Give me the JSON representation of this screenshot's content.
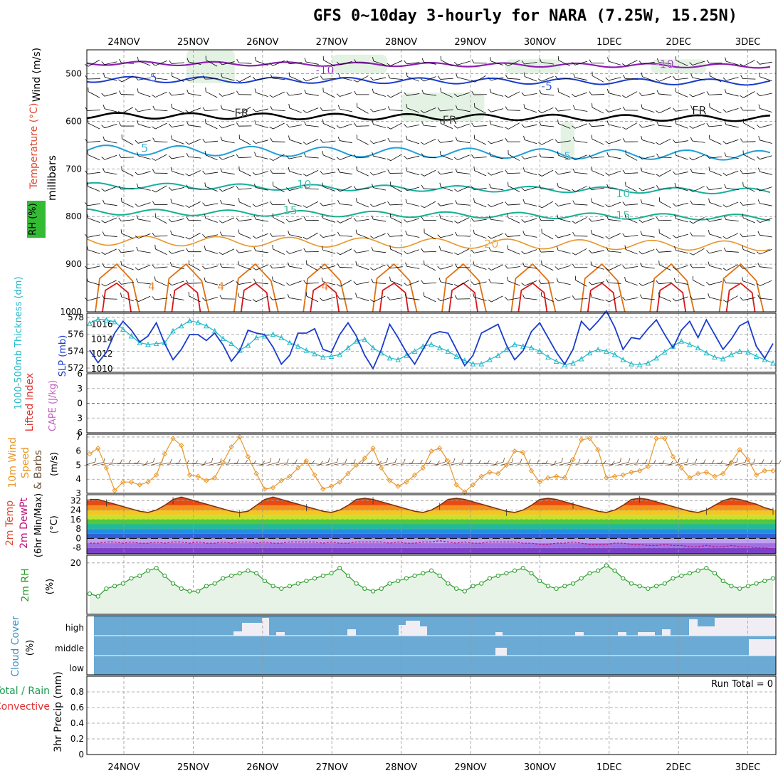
{
  "title": "GFS 0~10day 3-hourly for NARA (7.25W, 15.25N)",
  "dates": [
    "24NOV",
    "25NOV",
    "26NOV",
    "27NOV",
    "28NOV",
    "29NOV",
    "30NOV",
    "1DEC",
    "2DEC",
    "3DEC"
  ],
  "chart_data": [
    {
      "type": "line",
      "panel": "upper-air",
      "ylabel_parts": [
        "RH (%)",
        "Temperature (°C)",
        "Wind (m/s)"
      ],
      "yaxis_label": "millibars",
      "yticks": [
        500,
        600,
        700,
        800,
        900,
        1000
      ],
      "ylim": [
        1000,
        450
      ],
      "contour_labels": [
        {
          "text": "-10",
          "level": -10,
          "day": 2.9,
          "p": 493
        },
        {
          "text": "-10",
          "level": -10,
          "day": 7.8,
          "p": 481
        },
        {
          "text": "-5",
          "level": -5,
          "day": 0.4,
          "p": 509
        },
        {
          "text": "-5",
          "level": -5,
          "day": 6.1,
          "p": 527
        },
        {
          "text": "FR",
          "level": 0,
          "day": 1.7,
          "p": 583
        },
        {
          "text": "FR",
          "level": 0,
          "day": 4.7,
          "p": 598
        },
        {
          "text": "FR",
          "level": 0,
          "day": 8.3,
          "p": 578
        },
        {
          "text": "5",
          "level": 5,
          "day": 0.3,
          "p": 657
        },
        {
          "text": "5",
          "level": 5,
          "day": 6.4,
          "p": 674
        },
        {
          "text": "10",
          "level": 10,
          "day": 2.6,
          "p": 733
        },
        {
          "text": "10",
          "level": 10,
          "day": 7.2,
          "p": 752
        },
        {
          "text": "15",
          "level": 15,
          "day": 2.4,
          "p": 788
        },
        {
          "text": "15",
          "level": 15,
          "day": 7.2,
          "p": 798
        },
        {
          "text": "20",
          "level": 20,
          "day": 5.3,
          "p": 858
        },
        {
          "text": "4",
          "level": 4,
          "day": 0.4,
          "p": 948
        },
        {
          "text": "4",
          "level": 4,
          "day": 1.4,
          "p": 948
        },
        {
          "text": "4",
          "level": 4,
          "day": 2.9,
          "p": 948
        }
      ]
    },
    {
      "type": "line",
      "panel": "thickness-slp",
      "ylabel_left": "1000-500mb Thickness (dm)",
      "ylabel_right": "SLP (mb)",
      "yticks_left": [
        572,
        574,
        576,
        578
      ],
      "yticks_right": [
        1010,
        1012,
        1014,
        1016
      ],
      "series": [
        {
          "name": "SLP (mb)",
          "color": "#1a3ccc",
          "values": [
            1012.5,
            1010.8,
            1012.2,
            1014.8,
            1016.4,
            1015.2,
            1013.6,
            1014.4,
            1016.2,
            1013.4,
            1011.2,
            1012.6,
            1014.6,
            1014.6,
            1013.8,
            1014.8,
            1013.2,
            1011.0,
            1012.4,
            1015.2,
            1014.8,
            1014.6,
            1012.9,
            1010.6,
            1011.8,
            1014.8,
            1014.8,
            1015.4,
            1012.6,
            1012.2,
            1014.6,
            1016.2,
            1014.4,
            1011.8,
            1010.0,
            1012.6,
            1016.0,
            1014.2,
            1012.2,
            1010.6,
            1012.6,
            1014.6,
            1015.0,
            1014.8,
            1012.6,
            1010.4,
            1011.8,
            1014.8,
            1015.4,
            1016.0,
            1013.2,
            1011.2,
            1012.4,
            1015.0,
            1016.2,
            1014.2,
            1012.2,
            1010.6,
            1012.6,
            1016.4,
            1015.2,
            1016.4,
            1017.8,
            1015.6,
            1012.6,
            1014.2,
            1014.0,
            1015.4,
            1016.6,
            1014.6,
            1012.8,
            1015.2,
            1016.4,
            1014.2,
            1016.6,
            1014.6,
            1012.6,
            1014.0,
            1015.8,
            1016.4,
            1013.0,
            1011.4,
            1013.4
          ]
        },
        {
          "name": "1000-500mb Thickness (dm)",
          "color": "#20b8c8",
          "values": [
            577.3,
            577.8,
            577.7,
            577.5,
            576.6,
            575.8,
            575.0,
            574.8,
            574.9,
            575.0,
            576.4,
            577.0,
            577.6,
            577.4,
            577.0,
            576.4,
            575.5,
            574.9,
            574.1,
            574.7,
            575.6,
            575.8,
            576.0,
            575.6,
            575.0,
            574.6,
            574.1,
            573.7,
            573.3,
            573.4,
            573.6,
            574.4,
            575.2,
            575.4,
            574.4,
            573.8,
            573.2,
            573.0,
            573.5,
            574.0,
            574.6,
            574.8,
            574.4,
            574.0,
            573.4,
            572.9,
            572.5,
            572.5,
            573.0,
            573.5,
            574.2,
            574.8,
            574.6,
            574.4,
            574.0,
            573.3,
            572.8,
            572.4,
            572.6,
            573.1,
            573.8,
            574.2,
            574.0,
            573.6,
            573.0,
            572.5,
            572.4,
            572.6,
            573.2,
            573.9,
            574.6,
            575.2,
            574.8,
            574.4,
            573.8,
            573.3,
            573.1,
            573.6,
            574.0,
            573.9,
            573.4,
            573.0,
            572.6
          ]
        }
      ]
    },
    {
      "type": "line",
      "panel": "lifted-index-cape",
      "ylabel_left": "Lifted Index",
      "ylabel_right": "CAPE (J/kg)",
      "yticks": [
        -6,
        -3,
        0,
        3,
        6
      ],
      "reference_value": 0
    },
    {
      "type": "line",
      "panel": "10m-wind",
      "ylabel": "10m Wind Speed & Barbs",
      "unit": "(m/s)",
      "yticks": [
        3,
        4,
        5,
        6,
        7
      ],
      "series": [
        {
          "name": "10m Wind Speed",
          "color": "#e8962a",
          "values": [
            5.8,
            6.2,
            4.8,
            3.2,
            3.8,
            3.8,
            3.6,
            3.8,
            4.3,
            5.8,
            6.9,
            6.4,
            4.3,
            4.2,
            3.9,
            4.1,
            5.2,
            6.3,
            7.0,
            5.6,
            4.4,
            3.3,
            3.4,
            3.9,
            4.2,
            4.8,
            5.3,
            4.3,
            3.3,
            3.5,
            3.8,
            4.4,
            5.0,
            5.5,
            6.2,
            4.8,
            3.9,
            3.5,
            3.8,
            4.3,
            4.8,
            6.0,
            6.2,
            5.3,
            3.6,
            3.1,
            3.6,
            4.2,
            4.5,
            4.4,
            5.0,
            6.0,
            5.9,
            4.6,
            3.8,
            4.1,
            4.2,
            4.1,
            5.4,
            6.8,
            6.9,
            6.1,
            4.1,
            4.2,
            4.3,
            4.5,
            4.6,
            4.9,
            6.9,
            6.9,
            5.6,
            4.8,
            4.1,
            4.4,
            4.5,
            4.2,
            4.4,
            5.2,
            6.1,
            5.4,
            4.3,
            4.6,
            4.6
          ]
        }
      ]
    },
    {
      "type": "area",
      "panel": "2m-temp",
      "ylabel": "2m Temp 2m DewPt (6hr Min/Max)",
      "unit": "(°C)",
      "yticks": [
        -8,
        0,
        8,
        16,
        24,
        32
      ],
      "series": [
        {
          "name": "2m Temp",
          "color": "#7a3010",
          "values": [
            33,
            33,
            31,
            29,
            27,
            25,
            23,
            22,
            24,
            28,
            33,
            35,
            33,
            31,
            29,
            27,
            25,
            23,
            22,
            23,
            28,
            33,
            35,
            33,
            31,
            29,
            27,
            25,
            23,
            22,
            24,
            28,
            33,
            34,
            33,
            31,
            29,
            27,
            25,
            23,
            22,
            24,
            28,
            33,
            34,
            33,
            31,
            29,
            27,
            25,
            23,
            22,
            24,
            28,
            33,
            34,
            33,
            31,
            29,
            27,
            25,
            23,
            22,
            24,
            28,
            33,
            34,
            33,
            31,
            29,
            27,
            25,
            23,
            22,
            24,
            28,
            32,
            34,
            33,
            31,
            29,
            26,
            24
          ]
        },
        {
          "name": "2m DewPt",
          "color": "#c0107a",
          "values": [
            -4,
            -4,
            -3,
            -3,
            -4,
            -3,
            -4,
            -4,
            -3,
            -4,
            -3,
            -3,
            -4,
            -3,
            -4,
            -4,
            -3,
            -4,
            -3,
            -3,
            -4,
            -3,
            -4,
            -4,
            -3,
            -3,
            -3,
            -3,
            -4,
            -3,
            -4,
            -4,
            -3,
            -3,
            -3,
            -3,
            -4,
            -3,
            -4,
            -4,
            -3,
            -3,
            -2,
            -3,
            -4,
            -3,
            -4,
            -4,
            -3,
            -3,
            -3,
            -3,
            -4,
            -4,
            -5,
            -5,
            -4,
            -4,
            -3,
            -4,
            -5,
            -5,
            -5,
            -4,
            -4,
            -5,
            -5,
            -6,
            -6,
            -5,
            -6,
            -6,
            -7,
            -7,
            -6,
            -7,
            -7,
            -6,
            -7,
            -7,
            -8,
            -8,
            -9
          ]
        }
      ]
    },
    {
      "type": "area",
      "panel": "2m-rh",
      "ylabel": "2m RH",
      "unit": "(%)",
      "yticks": [
        20
      ],
      "series": [
        {
          "name": "2m RH",
          "color": "#2a9c2a",
          "values": [
            8,
            7,
            10,
            11,
            12,
            14,
            15,
            17,
            18,
            15,
            12,
            10,
            9,
            9,
            11,
            12,
            14,
            15,
            16,
            17,
            16,
            13,
            11,
            10,
            11,
            12,
            13,
            14,
            15,
            16,
            18,
            15,
            12,
            10,
            9,
            10,
            12,
            13,
            14,
            15,
            16,
            17,
            15,
            12,
            10,
            9,
            11,
            12,
            14,
            15,
            16,
            17,
            18,
            16,
            13,
            11,
            10,
            11,
            12,
            14,
            16,
            17,
            19,
            17,
            14,
            12,
            11,
            10,
            11,
            12,
            14,
            15,
            16,
            17,
            18,
            16,
            13,
            11,
            10,
            11,
            12,
            13,
            14
          ]
        }
      ]
    },
    {
      "type": "area",
      "panel": "cloud-cover",
      "ylabel": "Cloud Cover",
      "unit": "(%)",
      "yticks": [
        "high",
        "middle",
        "low"
      ]
    },
    {
      "type": "bar",
      "panel": "precip",
      "ylabel_parts": [
        "Total / Rain",
        "Convective",
        "3hr Precip (mm)"
      ],
      "yticks": [
        0,
        0.2,
        0.4,
        0.6,
        0.8
      ],
      "ylim": [
        0,
        1
      ],
      "annotation": "Run Total = 0",
      "values": []
    }
  ]
}
